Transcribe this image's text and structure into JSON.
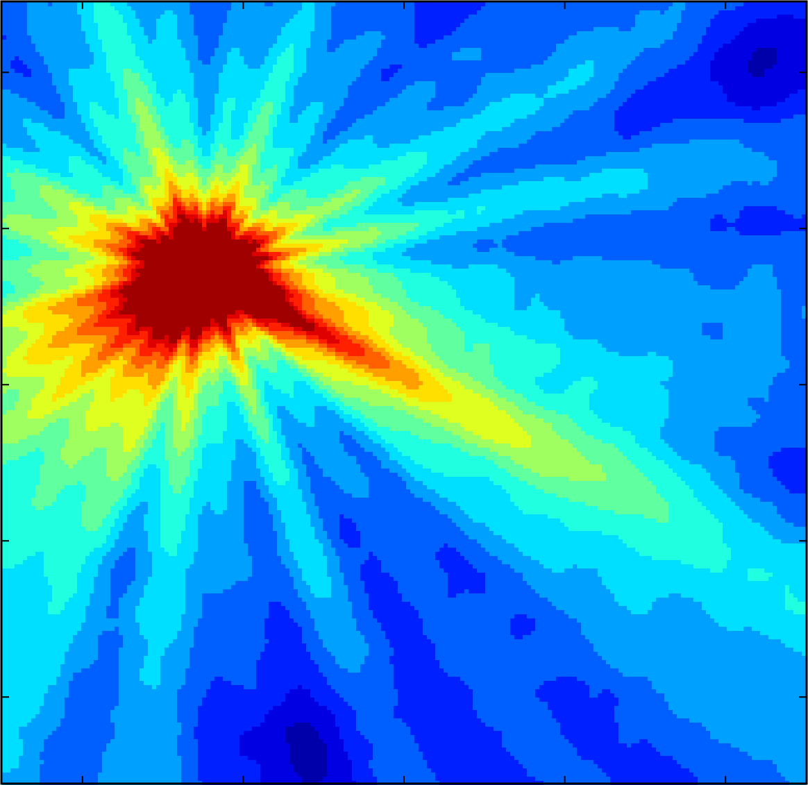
{
  "chart_data": {
    "type": "heatmap",
    "subtype": "filled-contour",
    "colormap": "jet",
    "colormap_stops": [
      "#00008f",
      "#0000ff",
      "#0080ff",
      "#00ffff",
      "#80ff80",
      "#ffff00",
      "#ff8000",
      "#ff0000",
      "#800000"
    ],
    "title": "",
    "xlabel": "",
    "ylabel": "",
    "x_tick_count": 5,
    "y_tick_count": 5,
    "tick_labels_shown": false,
    "levels": 16,
    "value_range": [
      0,
      1
    ],
    "grid": false,
    "legend": "none",
    "field": {
      "domain": [
        0,
        1
      ],
      "background": 0.18,
      "peak": {
        "x": 0.25,
        "y": 0.345,
        "value": 1.0
      },
      "rays": [
        {
          "angle_deg": 32,
          "amplitude": 0.4,
          "width": 0.2
        },
        {
          "angle_deg": 25,
          "amplitude": 0.3,
          "width": 0.14
        },
        {
          "angle_deg": 8,
          "amplitude": 0.26,
          "width": 0.12
        },
        {
          "angle_deg": -12,
          "amplitude": 0.22,
          "width": 0.1
        },
        {
          "angle_deg": -30,
          "amplitude": 0.2,
          "width": 0.12
        },
        {
          "angle_deg": 140,
          "amplitude": 0.42,
          "width": 0.3
        },
        {
          "angle_deg": 165,
          "amplitude": 0.3,
          "width": 0.2
        },
        {
          "angle_deg": 200,
          "amplitude": 0.3,
          "width": 0.24
        },
        {
          "angle_deg": 115,
          "amplitude": 0.26,
          "width": 0.14
        },
        {
          "angle_deg": 95,
          "amplitude": 0.24,
          "width": 0.12
        },
        {
          "angle_deg": 70,
          "amplitude": 0.18,
          "width": 0.1
        },
        {
          "angle_deg": 250,
          "amplitude": 0.22,
          "width": 0.18
        },
        {
          "angle_deg": 290,
          "amplitude": 0.14,
          "width": 0.15
        }
      ],
      "dark_regions": [
        {
          "x": 0.97,
          "y": 0.62,
          "value": 0.0
        },
        {
          "x": 0.97,
          "y": 0.06,
          "value": 0.0
        },
        {
          "x": 0.38,
          "y": 0.97,
          "value": 0.1
        }
      ]
    }
  }
}
